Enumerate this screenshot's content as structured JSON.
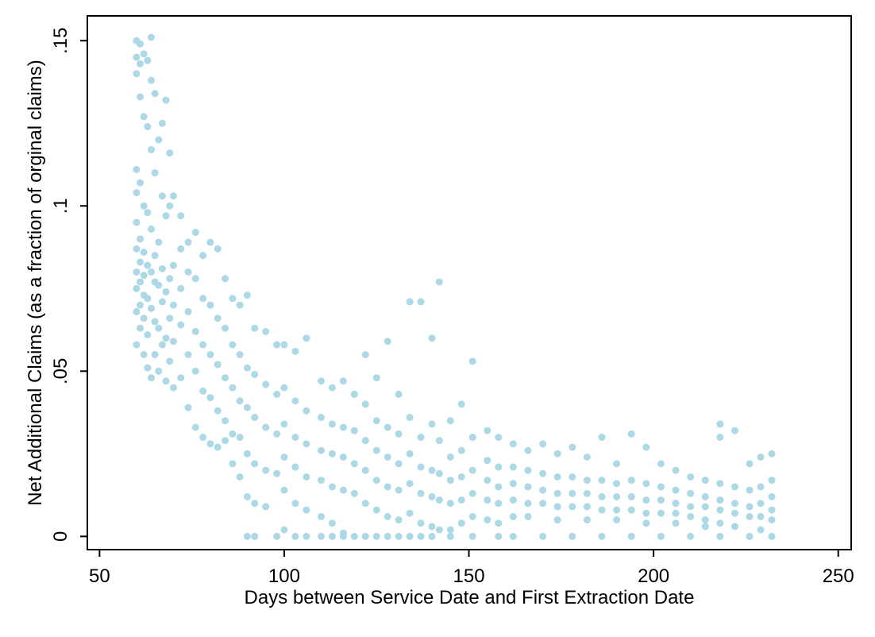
{
  "chart_data": {
    "type": "scatter",
    "xlabel": "Days between Service Date and First Extraction Date",
    "ylabel": "Net Additional Claims (as a fraction of orginal claims)",
    "color": "#add8e6",
    "xlim": [
      46.7,
      253.5
    ],
    "ylim": [
      -0.004,
      0.1575
    ],
    "xticks": [
      50,
      100,
      150,
      200,
      250
    ],
    "yticks": [
      0,
      {
        "value": 0.05,
        "label": ".05"
      },
      {
        "value": 0.1,
        "label": ".1"
      },
      {
        "value": 0.15,
        "label": ".15"
      }
    ],
    "x": [
      60,
      60,
      60,
      60,
      60,
      60,
      60,
      60,
      60,
      60,
      60,
      61,
      61,
      61,
      61,
      61,
      61,
      61,
      61,
      61,
      62,
      62,
      62,
      62,
      62,
      62,
      62,
      62,
      63,
      63,
      63,
      63,
      63,
      63,
      63,
      64,
      64,
      64,
      64,
      64,
      64,
      64,
      65,
      65,
      65,
      65,
      65,
      65,
      66,
      66,
      66,
      66,
      66,
      67,
      67,
      67,
      67,
      67,
      68,
      68,
      68,
      68,
      68,
      69,
      69,
      69,
      69,
      69,
      70,
      70,
      70,
      70,
      70,
      72,
      72,
      72,
      72,
      72,
      74,
      74,
      74,
      74,
      74,
      76,
      76,
      76,
      76,
      76,
      78,
      78,
      78,
      78,
      78,
      80,
      80,
      80,
      80,
      80,
      82,
      82,
      82,
      82,
      82,
      84,
      84,
      84,
      84,
      84,
      86,
      86,
      86,
      86,
      86,
      88,
      88,
      88,
      88,
      88,
      90,
      90,
      90,
      90,
      90,
      90,
      92,
      92,
      92,
      92,
      92,
      92,
      95,
      95,
      95,
      95,
      95,
      98,
      98,
      98,
      98,
      98,
      100,
      100,
      100,
      100,
      100,
      100,
      103,
      103,
      103,
      103,
      103,
      103,
      106,
      106,
      106,
      106,
      106,
      106,
      110,
      110,
      110,
      110,
      110,
      110,
      113,
      113,
      113,
      113,
      113,
      113,
      116,
      116,
      116,
      116,
      116,
      116,
      119,
      119,
      119,
      119,
      119,
      122,
      122,
      122,
      122,
      122,
      122,
      125,
      125,
      125,
      125,
      125,
      125,
      128,
      128,
      128,
      128,
      128,
      128,
      131,
      131,
      131,
      131,
      131,
      131,
      134,
      134,
      134,
      134,
      134,
      134,
      137,
      137,
      137,
      137,
      137,
      137,
      140,
      140,
      140,
      140,
      140,
      140,
      142,
      142,
      142,
      142,
      142,
      145,
      145,
      145,
      145,
      145,
      145,
      148,
      148,
      148,
      148,
      148,
      151,
      151,
      151,
      151,
      151,
      151,
      155,
      155,
      155,
      155,
      155,
      158,
      158,
      158,
      158,
      158,
      158,
      162,
      162,
      162,
      162,
      162,
      162,
      166,
      166,
      166,
      166,
      166,
      170,
      170,
      170,
      170,
      170,
      174,
      174,
      174,
      174,
      174,
      178,
      178,
      178,
      178,
      178,
      182,
      182,
      182,
      182,
      182,
      186,
      186,
      186,
      186,
      186,
      190,
      190,
      190,
      190,
      190,
      194,
      194,
      194,
      194,
      194,
      198,
      198,
      198,
      198,
      198,
      202,
      202,
      202,
      202,
      202,
      206,
      206,
      206,
      206,
      206,
      210,
      210,
      210,
      210,
      210,
      214,
      214,
      214,
      214,
      214,
      218,
      218,
      218,
      218,
      218,
      218,
      218,
      222,
      222,
      222,
      222,
      222,
      226,
      226,
      226,
      226,
      226,
      229,
      229,
      229,
      229,
      229,
      232,
      232,
      232,
      232,
      232,
      232
    ],
    "values": [
      0.15,
      0.145,
      0.14,
      0.111,
      0.104,
      0.095,
      0.087,
      0.08,
      0.075,
      0.068,
      0.058,
      0.149,
      0.143,
      0.133,
      0.107,
      0.09,
      0.083,
      0.077,
      0.07,
      0.063,
      0.146,
      0.127,
      0.1,
      0.086,
      0.079,
      0.073,
      0.066,
      0.055,
      0.144,
      0.124,
      0.098,
      0.082,
      0.072,
      0.061,
      0.051,
      0.151,
      0.138,
      0.117,
      0.093,
      0.08,
      0.069,
      0.048,
      0.134,
      0.11,
      0.085,
      0.077,
      0.065,
      0.055,
      0.12,
      0.089,
      0.076,
      0.063,
      0.05,
      0.125,
      0.103,
      0.081,
      0.071,
      0.058,
      0.132,
      0.097,
      0.074,
      0.06,
      0.047,
      0.116,
      0.1,
      0.078,
      0.066,
      0.053,
      0.103,
      0.082,
      0.07,
      0.059,
      0.045,
      0.097,
      0.087,
      0.075,
      0.064,
      0.048,
      0.089,
      0.08,
      0.068,
      0.055,
      0.039,
      0.092,
      0.078,
      0.062,
      0.05,
      0.033,
      0.085,
      0.072,
      0.058,
      0.044,
      0.03,
      0.089,
      0.07,
      0.055,
      0.042,
      0.028,
      0.087,
      0.066,
      0.052,
      0.038,
      0.027,
      0.078,
      0.063,
      0.048,
      0.035,
      0.029,
      0.072,
      0.058,
      0.045,
      0.031,
      0.022,
      0.07,
      0.055,
      0.041,
      0.03,
      0.018,
      0.073,
      0.051,
      0.039,
      0.025,
      0.012,
      0,
      0.063,
      0.049,
      0.036,
      0.022,
      0.01,
      0,
      0.062,
      0.046,
      0.033,
      0.02,
      0.009,
      0.058,
      0.043,
      0.031,
      0.019,
      0,
      0.058,
      0.045,
      0.034,
      0.024,
      0.014,
      0.002,
      0.056,
      0.041,
      0.03,
      0.021,
      0.01,
      0,
      0.06,
      0.038,
      0.028,
      0.018,
      0.008,
      0,
      0.047,
      0.036,
      0.026,
      0.017,
      0.006,
      0,
      0.045,
      0.034,
      0.025,
      0.015,
      0.004,
      0,
      0.047,
      0.033,
      0.024,
      0.014,
      0.001,
      0,
      0.043,
      0.032,
      0.022,
      0.013,
      0,
      0.055,
      0.04,
      0.029,
      0.02,
      0.01,
      0,
      0.048,
      0.035,
      0.026,
      0.017,
      0.008,
      0,
      0.059,
      0.033,
      0.024,
      0.015,
      0.006,
      0,
      0.043,
      0.031,
      0.022,
      0.014,
      0.005,
      0,
      0.071,
      0.036,
      0.025,
      0.016,
      0.007,
      0,
      0.071,
      0.03,
      0.021,
      0.013,
      0.004,
      0,
      0.06,
      0.034,
      0.02,
      0.012,
      0.003,
      0,
      0.077,
      0.029,
      0.019,
      0.011,
      0.002,
      0.035,
      0.024,
      0.017,
      0.01,
      0.002,
      0,
      0.04,
      0.026,
      0.018,
      0.011,
      0.004,
      0.053,
      0.03,
      0.02,
      0.013,
      0.006,
      0,
      0.032,
      0.023,
      0.017,
      0.011,
      0.005,
      0.03,
      0.021,
      0.015,
      0.01,
      0.004,
      0,
      0.028,
      0.021,
      0.016,
      0.011,
      0.006,
      0,
      0.026,
      0.02,
      0.015,
      0.01,
      0.006,
      0.028,
      0.019,
      0.014,
      0.01,
      0,
      0.025,
      0.018,
      0.013,
      0.009,
      0.005,
      0.027,
      0.018,
      0.013,
      0.009,
      0,
      0.024,
      0.017,
      0.013,
      0.009,
      0.005,
      0.03,
      0.017,
      0.012,
      0.008,
      0,
      0.022,
      0.016,
      0.012,
      0.008,
      0.005,
      0.031,
      0.017,
      0.012,
      0.008,
      0,
      0.027,
      0.016,
      0.011,
      0.007,
      0.004,
      0.022,
      0.015,
      0.011,
      0.007,
      0,
      0.02,
      0.014,
      0.01,
      0.007,
      0.004,
      0.018,
      0.013,
      0.009,
      0.006,
      0,
      0.017,
      0.012,
      0.009,
      0.005,
      0.003,
      0.034,
      0.03,
      0.016,
      0.011,
      0.008,
      0.004,
      0,
      0.032,
      0.015,
      0.01,
      0.007,
      0.003,
      0.022,
      0.014,
      0.009,
      0.006,
      0,
      0.024,
      0.015,
      0.01,
      0.006,
      0.002,
      0.025,
      0.017,
      0.012,
      0.008,
      0.005,
      0
    ]
  }
}
